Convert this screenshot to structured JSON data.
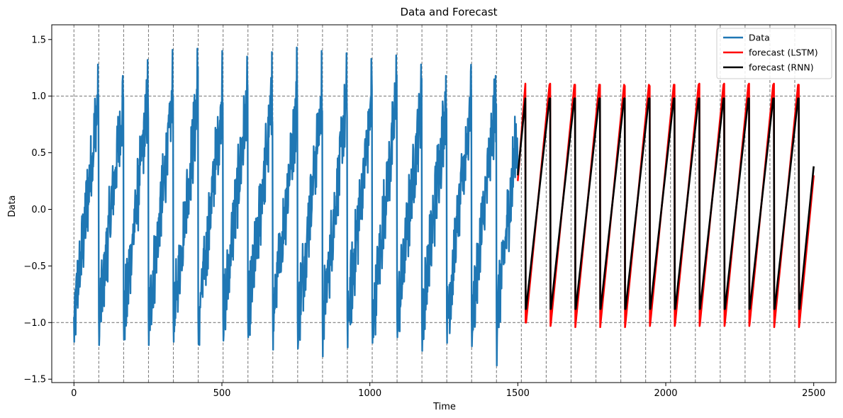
{
  "chart_data": {
    "type": "line",
    "title": "Data and Forecast",
    "xlabel": "Time",
    "ylabel": "Data",
    "xlim": [
      -75,
      2575
    ],
    "ylim": [
      -1.53,
      1.63
    ],
    "x_ticks": [
      0,
      500,
      1000,
      1500,
      2000,
      2500
    ],
    "x_tick_labels": [
      "0",
      "500",
      "1000",
      "1500",
      "2000",
      "2500"
    ],
    "y_ticks": [
      -1.5,
      -1.0,
      -0.5,
      0.0,
      0.5,
      1.0,
      1.5
    ],
    "y_tick_labels": [
      "−1.5",
      "−1.0",
      "−0.5",
      "0.0",
      "0.5",
      "1.0",
      "1.5"
    ],
    "grid": false,
    "legend_position": "top-right",
    "reference_lines": {
      "horizontal": [
        -1.0,
        1.0
      ],
      "vertical": [
        0,
        84,
        168,
        252,
        336,
        420,
        504,
        588,
        672,
        756,
        840,
        924,
        1008,
        1092,
        1176,
        1260,
        1344,
        1428,
        1512,
        1596,
        1680,
        1764,
        1848,
        1932,
        2016,
        2100,
        2184,
        2268,
        2352,
        2436
      ],
      "color": "#7f7f7f",
      "style": "dashed"
    },
    "series": [
      {
        "name": "Data",
        "color": "#1f77b4",
        "period": 84,
        "x_range": [
          0,
          1500
        ],
        "note_shape": "noisy sawtooth rising from about -1 to about 1 in each period",
        "peaks": [
          1.28,
          1.18,
          1.32,
          1.41,
          1.42,
          1.4,
          1.35,
          1.39,
          1.43,
          1.4,
          1.38,
          1.33,
          1.36,
          1.28,
          1.18,
          1.22,
          1.18,
          1.27
        ],
        "troughs": [
          -1.17,
          -1.2,
          -1.15,
          -1.2,
          -1.17,
          -1.19,
          -1.16,
          -1.13,
          -1.24,
          -1.23,
          -1.3,
          -1.22,
          -1.18,
          -1.13,
          -1.25,
          -1.18,
          -1.21,
          -1.38
        ],
        "x": [
          0,
          8,
          16,
          24,
          32,
          40,
          48,
          56,
          64,
          72,
          80,
          84
        ],
        "y_first_cycle": [
          -1.0,
          -0.62,
          -0.35,
          -0.22,
          -0.05,
          0.12,
          0.35,
          0.52,
          0.72,
          0.9,
          1.28,
          -1.0
        ]
      },
      {
        "name": "forecast (LSTM)",
        "color": "#ff0000",
        "x_range": [
          1500,
          2500
        ],
        "period": 84,
        "phase_start": 1526,
        "cycle_start_value": -1.0,
        "cycle_end_value": 1.1,
        "first_value": 0.25,
        "last_value": 0.3,
        "cycle_minima": [
          -1.0,
          -1.03,
          -1.04,
          -1.04,
          -1.04,
          -1.03,
          -1.03,
          -1.03,
          -1.03,
          -1.03,
          -1.04,
          -1.04
        ],
        "cycle_maxima": [
          1.11,
          1.11,
          1.1,
          1.1,
          1.09,
          1.09,
          1.1,
          1.11,
          1.11,
          1.11,
          1.11,
          1.1
        ]
      },
      {
        "name": "forecast (RNN)",
        "color": "#000000",
        "x_range": [
          1500,
          2500
        ],
        "period": 84,
        "phase_start": 1526,
        "cycle_start_value": -0.88,
        "cycle_end_value": 0.98,
        "first_value": 0.3,
        "last_value": 0.38
      }
    ]
  }
}
